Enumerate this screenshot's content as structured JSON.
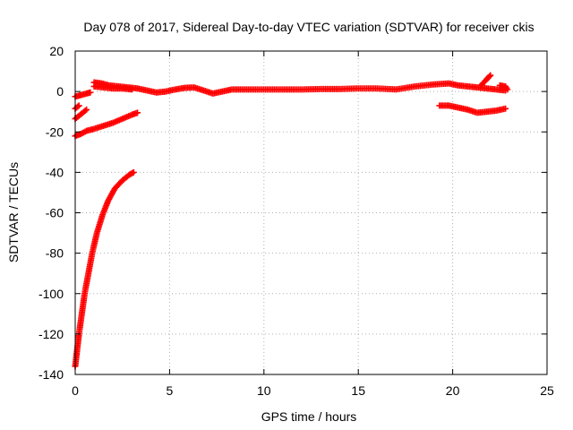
{
  "chart_data": {
    "type": "scatter",
    "title": "Day 078 of 2017, Sidereal Day-to-day VTEC variation (SDTVAR) for receiver ckis",
    "xlabel": "GPS time / hours",
    "ylabel": "SDTVAR / TECUs",
    "xlim": [
      0,
      25
    ],
    "ylim": [
      -140,
      20
    ],
    "xticks": [
      0,
      5,
      10,
      15,
      20,
      25
    ],
    "yticks": [
      -140,
      -120,
      -100,
      -80,
      -60,
      -40,
      -20,
      0,
      20
    ],
    "grid": true,
    "marker": "plus",
    "colors": {
      "series": "#ff0000",
      "grid": "#b0b0b0",
      "axis": "#000000"
    },
    "series": [
      {
        "values": [
          [
            0.0,
            -2.5
          ],
          [
            0.3,
            -1.8
          ],
          [
            0.6,
            -1.0
          ],
          [
            0.8,
            -0.5
          ]
        ]
      },
      {
        "values": [
          [
            1.0,
            4.5
          ],
          [
            1.4,
            4.0
          ],
          [
            1.8,
            3.0
          ],
          [
            2.3,
            2.5
          ],
          [
            2.8,
            2.0
          ],
          [
            3.3,
            1.5
          ],
          [
            3.8,
            0.5
          ],
          [
            4.3,
            -0.5
          ],
          [
            4.8,
            0.0
          ],
          [
            5.3,
            1.0
          ],
          [
            5.8,
            1.8
          ],
          [
            6.3,
            2.0
          ],
          [
            6.8,
            0.5
          ],
          [
            7.3,
            -1.0
          ],
          [
            7.8,
            0.0
          ],
          [
            8.3,
            1.0
          ],
          [
            9.0,
            1.0
          ],
          [
            10.0,
            1.0
          ],
          [
            11.0,
            1.0
          ],
          [
            12.0,
            1.0
          ],
          [
            13.0,
            1.2
          ],
          [
            14.0,
            1.2
          ],
          [
            15.0,
            1.5
          ],
          [
            16.0,
            1.5
          ],
          [
            17.0,
            1.0
          ],
          [
            18.0,
            2.5
          ],
          [
            19.0,
            3.5
          ],
          [
            19.8,
            4.0
          ],
          [
            20.3,
            3.0
          ],
          [
            20.8,
            2.5
          ],
          [
            21.3,
            2.0
          ],
          [
            21.8,
            1.5
          ],
          [
            22.3,
            1.0
          ],
          [
            22.8,
            0.5
          ]
        ]
      },
      {
        "values": [
          [
            1.0,
            2.5
          ],
          [
            1.5,
            2.0
          ],
          [
            2.0,
            1.5
          ],
          [
            2.5,
            1.5
          ],
          [
            3.0,
            1.0
          ]
        ]
      },
      {
        "values": [
          [
            0.0,
            -8.5
          ],
          [
            0.2,
            -7.0
          ]
        ]
      },
      {
        "values": [
          [
            0.0,
            -13.5
          ],
          [
            0.2,
            -12.0
          ],
          [
            0.4,
            -10.5
          ],
          [
            0.6,
            -9.0
          ]
        ]
      },
      {
        "values": [
          [
            0.0,
            -22.0
          ],
          [
            0.3,
            -21.0
          ],
          [
            0.6,
            -19.5
          ],
          [
            1.0,
            -18.5
          ],
          [
            1.5,
            -17.0
          ],
          [
            2.0,
            -15.5
          ],
          [
            2.5,
            -13.5
          ],
          [
            3.0,
            -11.5
          ],
          [
            3.3,
            -10.5
          ]
        ]
      },
      {
        "values": [
          [
            0.0,
            -136.0
          ],
          [
            0.1,
            -128.0
          ],
          [
            0.2,
            -120.0
          ],
          [
            0.35,
            -110.0
          ],
          [
            0.5,
            -100.0
          ],
          [
            0.7,
            -90.0
          ],
          [
            0.9,
            -80.0
          ],
          [
            1.15,
            -70.0
          ],
          [
            1.45,
            -61.0
          ],
          [
            1.75,
            -54.0
          ],
          [
            2.1,
            -48.0
          ],
          [
            2.5,
            -44.0
          ],
          [
            2.9,
            -41.0
          ],
          [
            3.1,
            -40.0
          ]
        ]
      },
      {
        "values": [
          [
            19.3,
            -7.0
          ],
          [
            19.8,
            -7.0
          ],
          [
            20.3,
            -8.0
          ],
          [
            20.8,
            -9.0
          ],
          [
            21.3,
            -10.5
          ],
          [
            21.8,
            -10.0
          ],
          [
            22.3,
            -9.5
          ],
          [
            22.8,
            -8.5
          ]
        ]
      },
      {
        "values": [
          [
            21.5,
            3.0
          ],
          [
            21.8,
            6.0
          ],
          [
            22.0,
            8.0
          ]
        ]
      },
      {
        "values": [
          [
            22.5,
            3.0
          ],
          [
            22.8,
            2.5
          ],
          [
            22.9,
            1.0
          ]
        ]
      }
    ]
  }
}
